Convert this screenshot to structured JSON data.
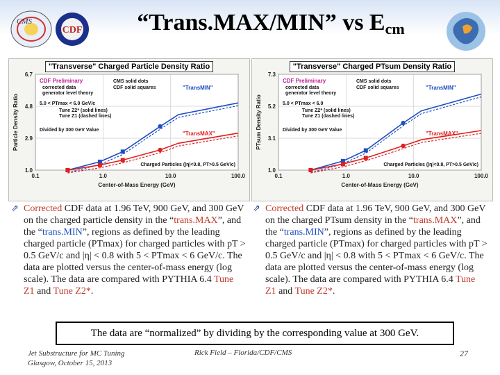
{
  "header": {
    "title_main": "“Trans.MAX/MIN” vs E",
    "title_sub": "cm"
  },
  "logos": {
    "left_logo_text": "CMS",
    "cdf_logo_text": "CDF"
  },
  "colors": {
    "series_min": "#1d4ec2",
    "series_max": "#e02020",
    "accent_text": "#c0392b",
    "title_bg": "#d8e4f6"
  },
  "left_chart": {
    "title": "\"Transverse\" Charged Particle Density Ratio",
    "preliminary": "CDF Preliminary",
    "preliminary_sub": "corrected data",
    "preliminary_sub2": "generator level theory",
    "cms_note1": "CMS solid dots",
    "cms_note2": "CDF solid squares",
    "cut_text": "5.0 < PTmax < 6.0 GeV/c",
    "tune_text1": "Tune Z2* (solid lines)",
    "tune_text2": "Tune Z1 (dashed lines)",
    "divided_text": "Divided by 300 GeV Value",
    "cuts_bottom": "Charged Particles (|η|<0.8, PT>0.5 GeV/c)",
    "label_min": "\"TransMIN\"",
    "label_max": "\"TransMAX\"",
    "xlabel": "Center-of-Mass Energy (GeV)",
    "ylabel": "Particle Density Ratio",
    "yticks": [
      "6.7",
      "4.8",
      "2.9",
      "1.0"
    ],
    "xticks": [
      "0.1",
      "1.0",
      "10.0",
      "100.0"
    ]
  },
  "right_chart": {
    "title": "\"Transverse\" Charged PTsum Density Ratio",
    "preliminary": "CDF Preliminary",
    "preliminary_sub": "corrected data",
    "preliminary_sub2": "generator level theory",
    "cms_note1": "CMS solid dots",
    "cms_note2": "CDF solid squares",
    "cut_text": "5.0 < PTmax < 6.0",
    "tune_text1": "Tune Z2* (solid lines)",
    "tune_text2": "Tune Z1 (dashed lines)",
    "divided_text": "Divided by 300 GeV Value",
    "cuts_bottom": "Charged Particles (|η|<0.8, PT>0.5 GeV/c)",
    "label_min": "\"TransMIN\"",
    "label_max": "\"TransMAX\"",
    "xlabel": "Center-of-Mass Energy (GeV)",
    "ylabel": "PTsum Density Ratio",
    "yticks": [
      "7.3",
      "5.2",
      "3.1",
      "1.0"
    ],
    "xticks": [
      "0.1",
      "1.0",
      "10.0",
      "100.0"
    ]
  },
  "bullets": {
    "left": {
      "corrected": "Corrected",
      "t1": " CDF data at 1.96 TeV, 900 GeV, and 300 GeV on the charged particle density in the “",
      "max": "trans.MAX",
      "t2": "”, and the “",
      "min": "trans.MIN",
      "t3": "”, regions as defined by the leading charged particle (PTmax) for charged particles with pT > 0.5 GeV/c and |η| < 0.8 with 5 < PTmax < 6 GeV/c. The data are plotted versus the center-of-mass energy (log scale). The data are compared with PYTHIA 6.4 ",
      "z1": "Tune Z1",
      "t4": " and ",
      "z2": "Tune Z2*",
      "t5": "."
    },
    "right": {
      "corrected": "Corrected",
      "t1": " CDF data at 1.96 TeV, 900 GeV, and 300 GeV on the charged PTsum density in the “",
      "max": "trans.MAX",
      "t2": "”, and the “",
      "min": "trans.MIN",
      "t3": "”, regions as defined by the leading charged particle (PTmax) for charged particles with pT > 0.5 GeV/c and |η| < 0.8 with 5 < PTmax < 6 GeV/c. The data are plotted versus the center-of-mass energy (log scale). The data are compared with PYTHIA 6.4 ",
      "z1": "Tune Z1",
      "t4": " and ",
      "z2": "Tune Z2*",
      "t5": "."
    }
  },
  "note": "The data are “normalized” by dividing by the corresponding value at 300 GeV.",
  "footer": {
    "left_line1": "Jet Substructure for MC Tuning",
    "left_line2": "Glasgow, October 15, 2013",
    "center": "Rick Field – Florida/CDF/CMS",
    "page": "27"
  },
  "chart_data": [
    {
      "type": "line",
      "title": "\"Transverse\" Charged Particle Density Ratio",
      "xlabel": "Center-of-Mass Energy (GeV)",
      "ylabel": "Particle Density Ratio",
      "xscale": "log",
      "xlim": [
        0.1,
        100.0
      ],
      "ylim": [
        1.0,
        6.7
      ],
      "series": [
        {
          "name": "\"TransMIN\"",
          "x": [
            0.3,
            0.9,
            1.96,
            7.0,
            13.0,
            100.0
          ],
          "values": [
            1.0,
            1.5,
            2.1,
            3.6,
            4.3,
            5.0
          ]
        },
        {
          "name": "\"TransMAX\"",
          "x": [
            0.3,
            0.9,
            1.96,
            7.0,
            13.0,
            100.0
          ],
          "values": [
            1.0,
            1.3,
            1.6,
            2.2,
            2.6,
            3.2
          ]
        }
      ]
    },
    {
      "type": "line",
      "title": "\"Transverse\" Charged PTsum Density Ratio",
      "xlabel": "Center-of-Mass Energy (GeV)",
      "ylabel": "PTsum Density Ratio",
      "xscale": "log",
      "xlim": [
        0.1,
        100.0
      ],
      "ylim": [
        1.0,
        7.3
      ],
      "series": [
        {
          "name": "\"TransMIN\"",
          "x": [
            0.3,
            0.9,
            1.96,
            7.0,
            13.0,
            100.0
          ],
          "values": [
            1.0,
            1.6,
            2.3,
            4.1,
            4.9,
            6.0
          ]
        },
        {
          "name": "\"TransMAX\"",
          "x": [
            0.3,
            0.9,
            1.96,
            7.0,
            13.0,
            100.0
          ],
          "values": [
            1.0,
            1.4,
            1.8,
            2.6,
            3.0,
            3.6
          ]
        }
      ]
    }
  ]
}
